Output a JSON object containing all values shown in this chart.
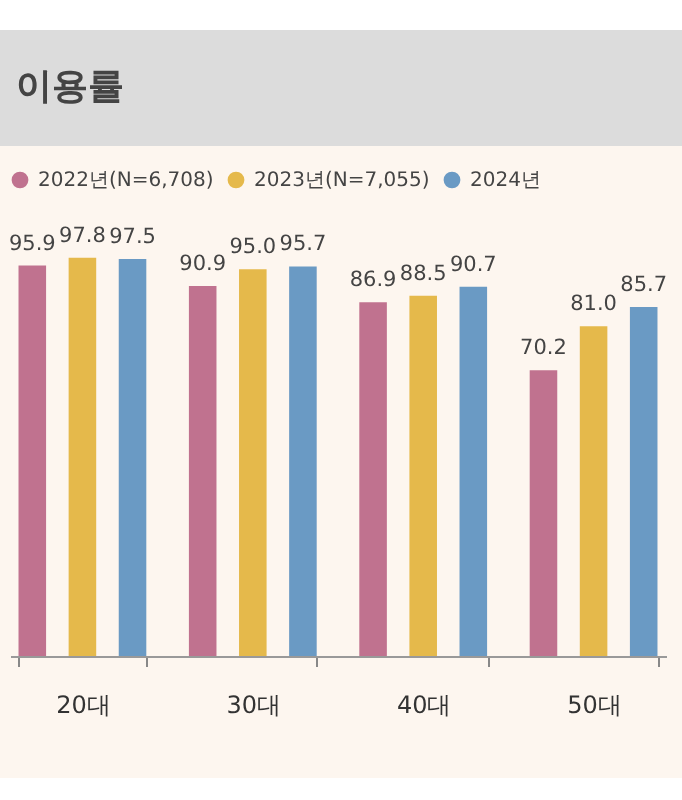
{
  "chart_data": {
    "type": "bar",
    "title": "이용률",
    "categories": [
      "20대",
      "30대",
      "40대",
      "50대"
    ],
    "series": [
      {
        "name": "2022년(N=6,708)",
        "color": "#c0728f",
        "values": [
          95.9,
          90.9,
          86.9,
          70.2
        ],
        "value_labels": [
          "95.9",
          "90.9",
          "86.9",
          "70.2"
        ]
      },
      {
        "name": "2023년(N=7,055)",
        "color": "#e5b94b",
        "values": [
          97.8,
          95.0,
          88.5,
          81.0
        ],
        "value_labels": [
          "97.8",
          "95.0",
          "88.5",
          "81.0"
        ]
      },
      {
        "name": "2024년",
        "color": "#6a9ac4",
        "values": [
          97.5,
          95.7,
          90.7,
          85.7
        ],
        "value_labels": [
          "97.5",
          "95.7",
          "90.7",
          "85.7"
        ]
      }
    ],
    "legend": "top",
    "grid": false
  }
}
